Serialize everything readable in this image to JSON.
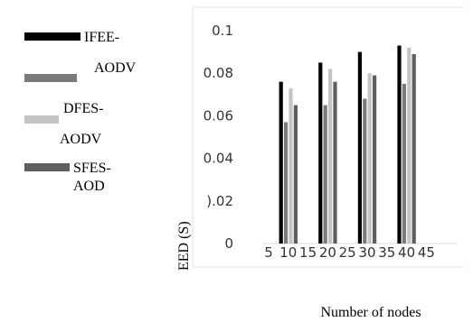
{
  "chart_data": {
    "type": "bar",
    "title": "",
    "xlabel": "Number of nodes",
    "ylabel": "EED (S)",
    "ylim": [
      0,
      0.1
    ],
    "yticks": [
      {
        "value": 0,
        "label": "0"
      },
      {
        "value": 0.02,
        "label": ").02"
      },
      {
        "value": 0.04,
        "label": "0.04"
      },
      {
        "value": 0.06,
        "label": "0.06"
      },
      {
        "value": 0.08,
        "label": "0.08"
      },
      {
        "value": 0.1,
        "label": "0.1"
      }
    ],
    "xticks": [
      "5",
      "10",
      "15",
      "20",
      "25",
      "30",
      "35",
      "40",
      "45"
    ],
    "categories": [
      "10",
      "20",
      "30",
      "40"
    ],
    "series": [
      {
        "name": "IFEE-",
        "color": "#000000",
        "values": [
          0.076,
          0.085,
          0.09,
          0.093
        ]
      },
      {
        "name": "AODV",
        "color": "#7a7a7a",
        "values": [
          0.057,
          0.065,
          0.068,
          0.075
        ]
      },
      {
        "name": "DFES-AODV",
        "color": "#c4c4c4",
        "values": [
          0.073,
          0.082,
          0.08,
          0.092
        ]
      },
      {
        "name": "SFES-AOD",
        "color": "#5e5e5e",
        "values": [
          0.065,
          0.076,
          0.079,
          0.089
        ]
      }
    ],
    "grid": false,
    "legend_position": "left"
  },
  "legend": {
    "items": [
      {
        "color": "#000000",
        "lines": [
          "IFEE-"
        ]
      },
      {
        "color": "#7a7a7a",
        "lines": [
          "AODV"
        ]
      },
      {
        "color": "#c4c4c4",
        "lines": [
          "DFES-",
          "AODV"
        ]
      },
      {
        "color": "#5e5e5e",
        "lines": [
          "SFES-",
          "AOD"
        ]
      }
    ]
  }
}
